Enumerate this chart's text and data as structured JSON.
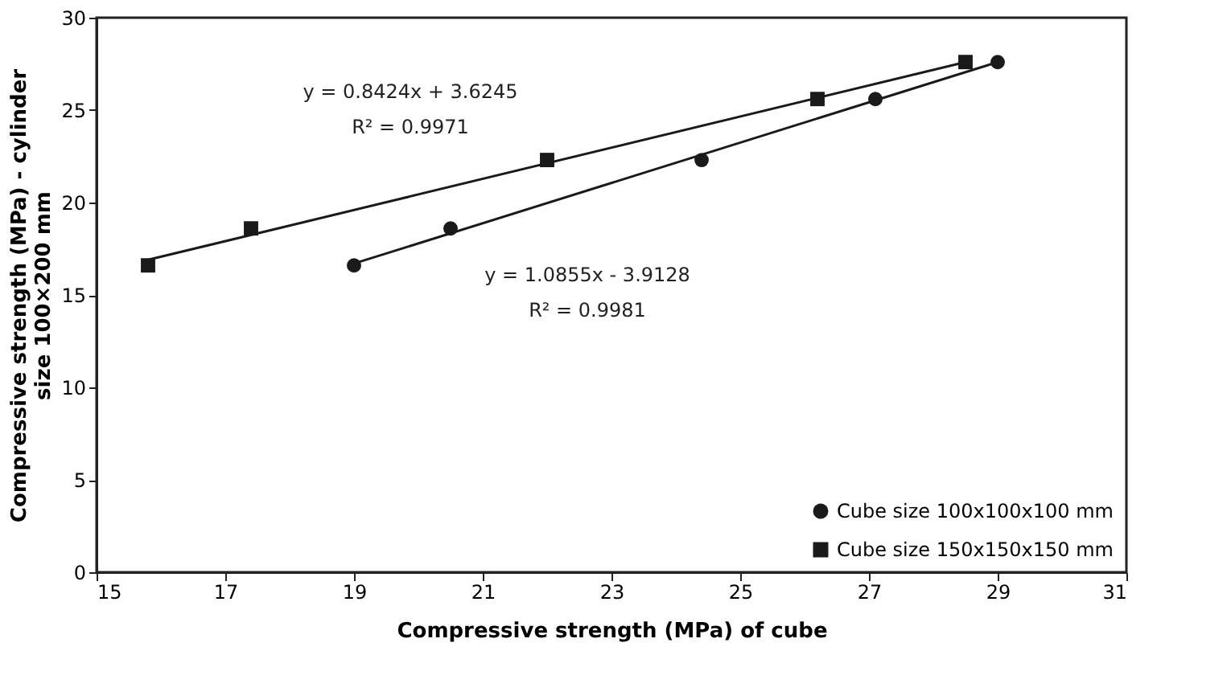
{
  "chart_data": {
    "type": "scatter",
    "xlabel": "Compressive strength (MPa) of cube",
    "ylabel": "Compressive strength (MPa) - cylinder\nsize 100×200 mm",
    "xlim": [
      15,
      31
    ],
    "xticks": [
      15,
      17,
      19,
      21,
      23,
      25,
      27,
      29,
      31
    ],
    "ylim": [
      0,
      30
    ],
    "yticks": [
      0,
      5,
      10,
      15,
      20,
      25,
      30
    ],
    "grid": false,
    "legend": "bottom right",
    "series": [
      {
        "name": "Cube size 100x100x100 mm",
        "color": "#1a1a1a",
        "marker": "circle",
        "x": [
          19.0,
          20.5,
          24.4,
          27.1,
          29.0
        ],
        "values": [
          16.6,
          18.6,
          22.3,
          25.6,
          27.6
        ]
      },
      {
        "name": "Cube size 150x150x150 mm",
        "color": "#1a1a1a",
        "marker": "square",
        "x": [
          15.8,
          17.4,
          22.0,
          26.2,
          28.5
        ],
        "values": [
          16.6,
          18.6,
          22.3,
          25.6,
          27.6
        ]
      },
      {
        "color": "#1a1a1a",
        "type": "line",
        "x": [
          19.0,
          29.0
        ],
        "values": [
          16.7,
          27.6
        ]
      },
      {
        "color": "#1a1a1a",
        "type": "line",
        "x": [
          15.8,
          28.5
        ],
        "values": [
          16.9,
          27.6
        ]
      }
    ],
    "annotations": [
      "y = 0.8424x + 3.6245",
      "R² = 0.9971",
      "y = 1.0855x - 3.9128",
      "R² = 0.9981"
    ]
  }
}
